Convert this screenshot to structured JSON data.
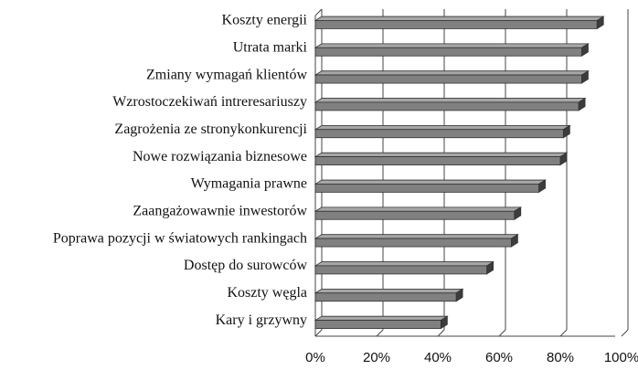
{
  "chart_data": {
    "type": "bar",
    "orientation": "horizontal",
    "categories": [
      "Koszty energii",
      "Utrata marki",
      "Zmiany wymagań klientów",
      "Wzrostoczekiwań intreresariuszy",
      "Zagrożenia ze stronykonkurencji",
      "Nowe rozwiązania biznesowe",
      "Wymagania prawne",
      "Zaangażowawnie inwestorów",
      "Poprawa pozycji w światowych rankingach",
      "Dostęp do surowców",
      "Koszty węgla",
      "Kary i grzywny"
    ],
    "values": [
      92,
      87,
      87,
      86,
      81,
      80,
      73,
      65,
      64,
      56,
      46,
      41
    ],
    "color": "#808080",
    "xlim": [
      0,
      100
    ],
    "xticks": [
      {
        "value": 0,
        "label": "0%"
      },
      {
        "value": 20,
        "label": "20%"
      },
      {
        "value": 40,
        "label": "40%"
      },
      {
        "value": 60,
        "label": "60%"
      },
      {
        "value": 80,
        "label": "80%"
      },
      {
        "value": 100,
        "label": "100%"
      }
    ],
    "grid": true
  }
}
